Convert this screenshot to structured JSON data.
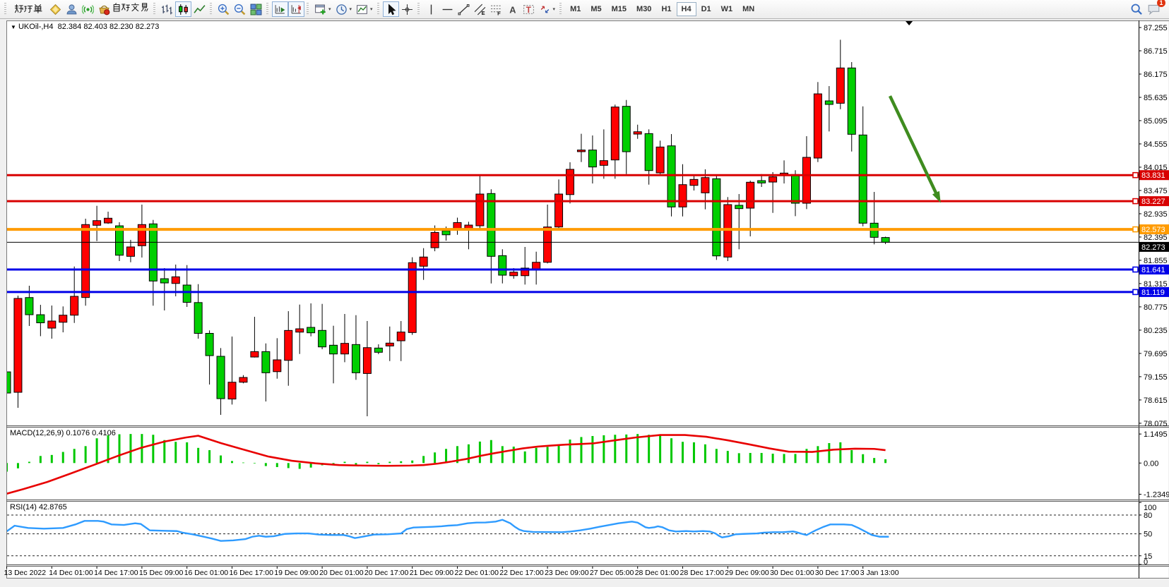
{
  "toolbar": {
    "new_order_label": "新订单",
    "auto_trading_label": "自动交易",
    "timeframes": [
      "M1",
      "M5",
      "M15",
      "M30",
      "H1",
      "H4",
      "D1",
      "W1",
      "MN"
    ],
    "active_timeframe": "H4",
    "chat_badge": "1",
    "icon_groups": [
      [
        "new-order-button"
      ],
      [
        "history-diamond",
        "accounts-person",
        "signal"
      ],
      [
        "auto-trading"
      ],
      [
        "bar-chart",
        "candlestick-chart",
        "line-chart"
      ],
      [
        "zoom-in",
        "zoom-out",
        "tile-windows"
      ],
      [
        "scroll-to-end",
        "chart-shift"
      ],
      [
        "new-chart",
        "periods",
        "templates"
      ],
      [
        "cursor",
        "crosshair"
      ],
      [
        "vertical-line",
        "horizontal-line",
        "trendline",
        "equidistant-channel",
        "fibonacci",
        "text",
        "text-label",
        "arrows"
      ]
    ],
    "active_icons": [
      "candlestick-chart",
      "scroll-to-end",
      "chart-shift",
      "cursor"
    ],
    "dropdown_icons": [
      "new-chart",
      "periods",
      "templates",
      "arrows"
    ]
  },
  "chart": {
    "symbol_title": "UKOil-,H4",
    "title_ohlc": "82.384 82.403 82.230 82.273"
  },
  "chart_data": {
    "type": "candlestick",
    "symbol": "UKOil-",
    "timeframe": "H4",
    "up_color": "#FF0000",
    "down_color": "#00CF00",
    "wick_color": "#000000",
    "price_axis_ticks": [
      "87.255",
      "86.715",
      "86.175",
      "85.635",
      "85.095",
      "84.555",
      "84.015",
      "83.475",
      "82.935",
      "82.395",
      "81.855",
      "81.315",
      "80.775",
      "80.235",
      "79.695",
      "79.155",
      "78.615",
      "78.075"
    ],
    "time_labels": [
      "13 Dec 2022",
      "14 Dec 01:00",
      "14 Dec 17:00",
      "15 Dec 09:00",
      "16 Dec 01:00",
      "16 Dec 17:00",
      "19 Dec 09:00",
      "20 Dec 01:00",
      "20 Dec 17:00",
      "21 Dec 09:00",
      "22 Dec 01:00",
      "22 Dec 17:00",
      "23 Dec 09:00",
      "27 Dec 05:00",
      "28 Dec 01:00",
      "28 Dec 17:00",
      "29 Dec 09:00",
      "30 Dec 01:00",
      "30 Dec 17:00",
      "3 Jan 13:00"
    ],
    "bars_per_label": 4,
    "candles": [
      [
        79.267,
        79.529,
        78.449,
        78.776
      ],
      [
        78.793,
        81.035,
        78.433,
        80.97
      ],
      [
        80.991,
        81.265,
        80.332,
        80.593
      ],
      [
        80.593,
        80.822,
        80.095,
        80.405
      ],
      [
        80.282,
        80.806,
        80.037,
        80.446
      ],
      [
        80.418,
        80.785,
        80.184,
        80.582
      ],
      [
        80.582,
        81.711,
        80.402,
        81.019
      ],
      [
        80.992,
        82.82,
        80.802,
        82.684
      ],
      [
        82.667,
        83.119,
        82.301,
        82.775
      ],
      [
        82.721,
        82.983,
        82.7,
        82.831
      ],
      [
        82.655,
        82.737,
        81.837,
        81.973
      ],
      [
        81.947,
        82.329,
        81.81,
        82.165
      ],
      [
        82.193,
        83.147,
        81.919,
        82.684
      ],
      [
        82.7,
        82.792,
        80.802,
        81.374
      ],
      [
        81.428,
        81.674,
        80.692,
        81.33
      ],
      [
        81.318,
        81.756,
        81.019,
        81.472
      ],
      [
        81.281,
        81.744,
        80.774,
        80.88
      ],
      [
        80.875,
        81.302,
        80.037,
        80.16
      ],
      [
        80.16,
        80.229,
        78.973,
        79.644
      ],
      [
        79.628,
        79.819,
        78.269,
        78.646
      ],
      [
        78.637,
        80.086,
        78.51,
        79.027
      ],
      [
        79.027,
        79.191,
        79.001,
        79.137
      ],
      [
        79.611,
        80.544,
        79.6,
        79.737
      ],
      [
        79.737,
        79.927,
        78.58,
        79.246
      ],
      [
        79.272,
        80.048,
        79.109,
        79.546
      ],
      [
        79.534,
        80.675,
        78.945,
        80.228
      ],
      [
        80.189,
        80.828,
        79.682,
        80.266
      ],
      [
        80.299,
        80.856,
        80.091,
        80.173
      ],
      [
        80.229,
        80.844,
        79.792,
        79.846
      ],
      [
        79.885,
        80.337,
        79.001,
        79.682
      ],
      [
        79.682,
        80.61,
        79.492,
        79.928
      ],
      [
        79.901,
        80.582,
        79.082,
        79.246
      ],
      [
        79.229,
        80.446,
        78.236,
        79.829
      ],
      [
        79.819,
        79.906,
        79.677,
        79.721
      ],
      [
        79.868,
        80.319,
        79.517,
        79.934
      ],
      [
        79.988,
        80.446,
        79.517,
        80.191
      ],
      [
        80.179,
        81.926,
        80.125,
        81.8
      ],
      [
        81.718,
        82.137,
        81.401,
        81.931
      ],
      [
        82.147,
        82.664,
        82.065,
        82.501
      ],
      [
        82.54,
        82.638,
        82.311,
        82.447
      ],
      [
        82.583,
        82.845,
        82.447,
        82.73
      ],
      [
        82.574,
        82.749,
        82.111,
        82.672
      ],
      [
        82.656,
        83.818,
        82.574,
        83.392
      ],
      [
        83.404,
        83.502,
        81.319,
        81.947
      ],
      [
        81.963,
        82.111,
        81.319,
        81.51
      ],
      [
        81.498,
        81.674,
        81.428,
        81.58
      ],
      [
        81.498,
        82.165,
        81.292,
        81.674
      ],
      [
        81.645,
        82.055,
        81.292,
        81.809
      ],
      [
        81.809,
        83.147,
        81.783,
        82.628
      ],
      [
        82.628,
        83.731,
        82.574,
        83.392
      ],
      [
        83.38,
        84.128,
        83.174,
        83.965
      ],
      [
        84.375,
        84.79,
        84.135,
        84.413
      ],
      [
        84.413,
        84.751,
        83.637,
        84.02
      ],
      [
        84.058,
        84.892,
        83.747,
        84.167
      ],
      [
        84.183,
        85.466,
        83.747,
        85.411
      ],
      [
        85.427,
        85.574,
        83.855,
        84.374
      ],
      [
        84.783,
        85.001,
        84.673,
        84.837
      ],
      [
        84.794,
        84.893,
        83.61,
        83.937
      ],
      [
        83.883,
        84.631,
        83.855,
        84.483
      ],
      [
        84.51,
        84.783,
        82.873,
        83.092
      ],
      [
        83.092,
        84.084,
        82.873,
        83.61
      ],
      [
        83.593,
        83.829,
        83.474,
        83.731
      ],
      [
        83.42,
        83.965,
        83.037,
        83.774
      ],
      [
        83.747,
        83.834,
        81.865,
        81.957
      ],
      [
        81.93,
        83.322,
        81.837,
        83.147
      ],
      [
        83.131,
        83.392,
        82.111,
        83.054
      ],
      [
        83.065,
        83.703,
        82.41,
        83.666
      ],
      [
        83.703,
        83.855,
        83.556,
        83.649
      ],
      [
        83.67,
        83.9,
        82.955,
        83.79
      ],
      [
        83.834,
        84.173,
        83.637,
        83.878
      ],
      [
        83.845,
        83.944,
        82.879,
        83.179
      ],
      [
        83.179,
        84.734,
        83.043,
        84.243
      ],
      [
        84.227,
        85.99,
        84.134,
        85.716
      ],
      [
        85.553,
        85.896,
        84.844,
        85.471
      ],
      [
        85.498,
        86.971,
        85.36,
        86.317
      ],
      [
        86.317,
        86.453,
        84.379,
        84.778
      ],
      [
        84.762,
        85.426,
        82.644,
        82.716
      ],
      [
        82.716,
        83.441,
        82.225,
        82.388
      ],
      [
        82.384,
        82.403,
        82.23,
        82.273
      ]
    ],
    "hlines": [
      {
        "value": "83.831",
        "color": "#D80000",
        "w": 3
      },
      {
        "value": "83.227",
        "color": "#D80000",
        "w": 3
      },
      {
        "value": "82.573",
        "color": "#FF9B00",
        "w": 4
      },
      {
        "value": "82.273",
        "color": "#000000",
        "w": 1,
        "current": true
      },
      {
        "value": "81.641",
        "color": "#0000E8",
        "w": 3
      },
      {
        "value": "81.119",
        "color": "#0000E8",
        "w": 3
      }
    ],
    "macd": {
      "label": "MACD(12,26,9) 0.1076 0.4106",
      "ticks": [
        {
          "v": 1.1495,
          "label": "1.1495"
        },
        {
          "v": 0,
          "label": "0.00"
        },
        {
          "v": -1.2349,
          "label": "-1.2349"
        }
      ],
      "bar_color": "#00C800",
      "signal_color": "#E80000",
      "values": [
        -0.34,
        -0.21,
        0.05,
        0.28,
        0.32,
        0.44,
        0.56,
        0.67,
        0.98,
        1.1,
        1.14,
        1.15,
        1.15,
        1.12,
        0.91,
        0.84,
        0.82,
        0.6,
        0.51,
        0.3,
        0.08,
        0.02,
        -0.02,
        -0.12,
        -0.16,
        -0.2,
        -0.23,
        -0.18,
        -0.09,
        -0.05,
        0.05,
        -0.06,
        0.05,
        -0.05,
        0.05,
        0.07,
        0.1,
        0.28,
        0.42,
        0.56,
        0.67,
        0.74,
        0.85,
        0.91,
        0.67,
        0.65,
        0.46,
        0.6,
        0.64,
        0.73,
        0.93,
        1.03,
        1.07,
        1.1,
        1.12,
        1.13,
        1.15,
        1.12,
        1.13,
        0.98,
        0.84,
        0.82,
        0.74,
        0.56,
        0.48,
        0.39,
        0.4,
        0.4,
        0.37,
        0.36,
        0.36,
        0.56,
        0.67,
        0.79,
        0.82,
        0.51,
        0.35,
        0.2,
        0.15
      ],
      "signal": [
        [
          -0.3,
          -1.25
        ],
        [
          1.5,
          -1.03
        ],
        [
          3.6,
          -0.75
        ],
        [
          5.7,
          -0.41
        ],
        [
          7.7,
          -0.08
        ],
        [
          9.9,
          0.29
        ],
        [
          11.9,
          0.6
        ],
        [
          14.0,
          0.85
        ],
        [
          15.9,
          1.01
        ],
        [
          17.0,
          1.08
        ],
        [
          19.0,
          0.79
        ],
        [
          21.2,
          0.51
        ],
        [
          23.2,
          0.26
        ],
        [
          25.3,
          0.09
        ],
        [
          27.4,
          -0.01
        ],
        [
          29.5,
          -0.08
        ],
        [
          31.6,
          -0.1
        ],
        [
          33.7,
          -0.11
        ],
        [
          35.8,
          -0.1
        ],
        [
          37.0,
          -0.08
        ],
        [
          38.3,
          -0.02
        ],
        [
          39.5,
          0.06
        ],
        [
          40.8,
          0.16
        ],
        [
          42.0,
          0.28
        ],
        [
          43.3,
          0.39
        ],
        [
          44.6,
          0.49
        ],
        [
          45.8,
          0.58
        ],
        [
          47.1,
          0.65
        ],
        [
          48.3,
          0.69
        ],
        [
          49.6,
          0.73
        ],
        [
          50.8,
          0.75
        ],
        [
          52.1,
          0.78
        ],
        [
          54.0,
          0.9
        ],
        [
          55.8,
          1.01
        ],
        [
          58.0,
          1.11
        ],
        [
          60.2,
          1.11
        ],
        [
          62.1,
          1.04
        ],
        [
          64.0,
          0.9
        ],
        [
          65.9,
          0.74
        ],
        [
          67.7,
          0.58
        ],
        [
          69.4,
          0.45
        ],
        [
          71.5,
          0.44
        ],
        [
          73.4,
          0.53
        ],
        [
          75.3,
          0.57
        ],
        [
          77.0,
          0.56
        ],
        [
          78.0,
          0.51
        ]
      ]
    },
    "rsi": {
      "label": "RSI(14) 42.8765",
      "levels": [
        80,
        50,
        15
      ],
      "ticks": [
        {
          "v": 100,
          "label": "100"
        },
        {
          "v": 80,
          "label": "80"
        },
        {
          "v": 50,
          "label": "50"
        },
        {
          "v": 15,
          "label": "15"
        },
        {
          "v": 0,
          "label": "0"
        }
      ],
      "line_color": "#2E9BFF",
      "points": [
        [
          0,
          54
        ],
        [
          0.7,
          63
        ],
        [
          1.9,
          59.4
        ],
        [
          3.3,
          58.3
        ],
        [
          5,
          59.4
        ],
        [
          6.1,
          65
        ],
        [
          6.9,
          70.6
        ],
        [
          8.1,
          70.6
        ],
        [
          8.6,
          69.5
        ],
        [
          9.3,
          65
        ],
        [
          10.4,
          64.2
        ],
        [
          11.4,
          66.8
        ],
        [
          11.9,
          65.7
        ],
        [
          12.7,
          55.6
        ],
        [
          14,
          54.9
        ],
        [
          15.1,
          54.4
        ],
        [
          15.6,
          51.9
        ],
        [
          16.5,
          49.3
        ],
        [
          17.3,
          46.2
        ],
        [
          18.2,
          42.5
        ],
        [
          19,
          38.7
        ],
        [
          20.1,
          39.5
        ],
        [
          21.2,
          41.7
        ],
        [
          21.8,
          45.4
        ],
        [
          22.4,
          47
        ],
        [
          23,
          45.4
        ],
        [
          23.7,
          46.2
        ],
        [
          24.7,
          49.9
        ],
        [
          25.7,
          50.7
        ],
        [
          26.8,
          50.7
        ],
        [
          27.7,
          48.8
        ],
        [
          28.8,
          48.1
        ],
        [
          29.9,
          48.1
        ],
        [
          30.4,
          46.2
        ],
        [
          30.9,
          43.2
        ],
        [
          31.6,
          45.4
        ],
        [
          32.6,
          48.8
        ],
        [
          33.8,
          49.3
        ],
        [
          35,
          50.7
        ],
        [
          35.5,
          57.5
        ],
        [
          36.1,
          60.1
        ],
        [
          37.8,
          61.2
        ],
        [
          38.6,
          62
        ],
        [
          39.2,
          63.1
        ],
        [
          40,
          63.9
        ],
        [
          40.9,
          66.8
        ],
        [
          41.7,
          67.9
        ],
        [
          42.5,
          68.1
        ],
        [
          43.4,
          69.5
        ],
        [
          44,
          72.4
        ],
        [
          44.7,
          66.8
        ],
        [
          45.1,
          61.2
        ],
        [
          45.5,
          56.7
        ],
        [
          45.9,
          54.4
        ],
        [
          46.7,
          53
        ],
        [
          49.3,
          52.6
        ],
        [
          50.1,
          53.8
        ],
        [
          50.9,
          55.6
        ],
        [
          51.8,
          58.3
        ],
        [
          52.6,
          61.2
        ],
        [
          53.5,
          64.2
        ],
        [
          54.3,
          66.8
        ],
        [
          55.1,
          68.7
        ],
        [
          55.5,
          69.5
        ],
        [
          56,
          67.9
        ],
        [
          56.7,
          60.5
        ],
        [
          57,
          59.4
        ],
        [
          57.5,
          60.5
        ],
        [
          57.8,
          62
        ],
        [
          58.2,
          60.5
        ],
        [
          58.8,
          55.6
        ],
        [
          59.4,
          53.8
        ],
        [
          60.3,
          54.4
        ],
        [
          61,
          53.8
        ],
        [
          61.8,
          54.4
        ],
        [
          62.4,
          53.8
        ],
        [
          62.9,
          50.7
        ],
        [
          63.2,
          47
        ],
        [
          63.5,
          44.3
        ],
        [
          64.1,
          46.2
        ],
        [
          64.7,
          49.3
        ],
        [
          65.4,
          49.9
        ],
        [
          66.6,
          50.7
        ],
        [
          67.2,
          51.9
        ],
        [
          68.1,
          52.6
        ],
        [
          68.9,
          52.6
        ],
        [
          69.8,
          53.8
        ],
        [
          70.1,
          52.6
        ],
        [
          70.6,
          49.9
        ],
        [
          71,
          48.1
        ],
        [
          71.2,
          49.9
        ],
        [
          71.8,
          55.6
        ],
        [
          72.5,
          61.2
        ],
        [
          73.1,
          65
        ],
        [
          74.3,
          65
        ],
        [
          75,
          64.2
        ],
        [
          75.6,
          59.4
        ],
        [
          76.2,
          53.8
        ],
        [
          76.8,
          48.1
        ],
        [
          77.5,
          45.4
        ],
        [
          78.3,
          45.4
        ]
      ]
    },
    "annotations": {
      "arrow": {
        "from_bar": 78.4,
        "from_price": 85.667,
        "to_bar": 82.9,
        "to_price": 83.187,
        "color": "#3F8C1F"
      },
      "shift_marker_bar": 80.1
    }
  }
}
